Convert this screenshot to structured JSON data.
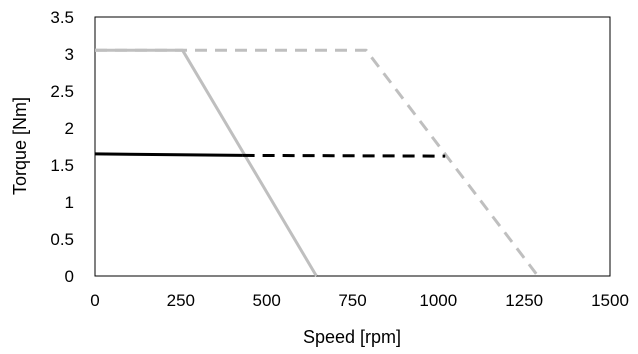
{
  "chart_data": {
    "type": "line",
    "xlabel": "Speed [rpm]",
    "ylabel": "Torque [Nm]",
    "xlim": [
      0,
      1500
    ],
    "ylim": [
      0,
      3.5
    ],
    "x_ticks": [
      "0",
      "250",
      "500",
      "750",
      "1000",
      "1250",
      "1500"
    ],
    "y_ticks": [
      "0",
      "0.5",
      "1",
      "1.5",
      "2",
      "2.5",
      "3",
      "3.5"
    ],
    "grid": false,
    "legend": "none",
    "series": [
      {
        "color": "#bfbfbf",
        "style": "solid",
        "points": [
          [
            0,
            3.05
          ],
          [
            255,
            3.05
          ],
          [
            645,
            0
          ]
        ]
      },
      {
        "color": "#bfbfbf",
        "style": "dashed",
        "points": [
          [
            0,
            3.05
          ],
          [
            790,
            3.05
          ],
          [
            1290,
            0
          ]
        ]
      },
      {
        "color": "#000000",
        "style": "solid",
        "points": [
          [
            0,
            1.65
          ],
          [
            430,
            1.63
          ]
        ]
      },
      {
        "color": "#000000",
        "style": "dashed",
        "points": [
          [
            430,
            1.63
          ],
          [
            1020,
            1.62
          ]
        ]
      }
    ]
  }
}
